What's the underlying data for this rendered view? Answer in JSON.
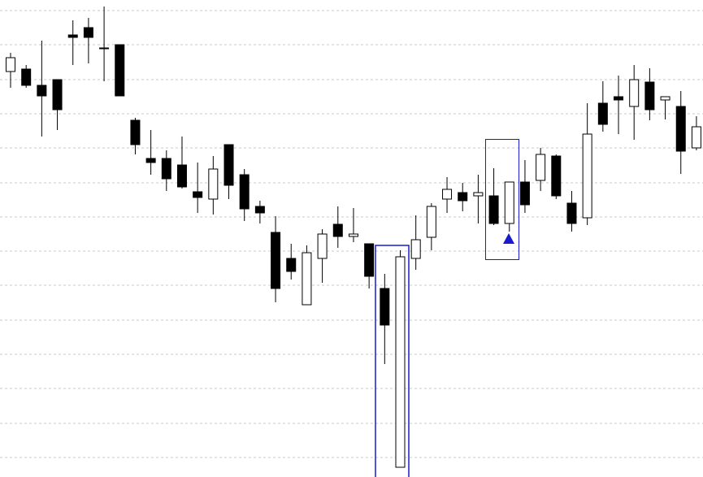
{
  "chart_data": {
    "type": "candlestick",
    "open": [
      499,
      502,
      482,
      489,
      544,
      553,
      528,
      532,
      439,
      392,
      392,
      384,
      351,
      342,
      409,
      372,
      333,
      301,
      269,
      212,
      269,
      311,
      296,
      287,
      232,
      12,
      269,
      295,
      342,
      350,
      346,
      346,
      312,
      363,
      365,
      395,
      337,
      319,
      460,
      468,
      456,
      486,
      464,
      456,
      405
    ],
    "high": [
      522,
      507,
      537,
      489,
      562,
      565,
      579,
      532,
      442,
      427,
      402,
      419,
      387,
      395,
      409,
      379,
      340,
      321,
      287,
      285,
      305,
      333,
      331,
      287,
      250,
      279,
      322,
      337,
      369,
      362,
      372,
      380,
      363,
      390,
      405,
      397,
      352,
      460,
      487,
      494,
      507,
      503,
      468,
      475,
      444
    ],
    "low": [
      479,
      479,
      419,
      427,
      507,
      509,
      487,
      469,
      397,
      372,
      352,
      355,
      325,
      323,
      342,
      315,
      312,
      215,
      243,
      212,
      239,
      282,
      289,
      232,
      139,
      12,
      255,
      279,
      325,
      327,
      312,
      310,
      302,
      325,
      352,
      342,
      302,
      310,
      425,
      422,
      415,
      439,
      440,
      373,
      402
    ],
    "close": [
      516,
      482,
      469,
      452,
      541,
      541,
      527,
      469,
      409,
      387,
      367,
      357,
      344,
      379,
      359,
      330,
      325,
      232,
      253,
      276,
      299,
      296,
      299,
      247,
      187,
      271,
      292,
      333,
      354,
      340,
      350,
      312,
      363,
      335,
      397,
      346,
      312,
      422,
      434,
      464,
      489,
      452,
      468,
      401,
      431
    ],
    "up_color": "#ffffff",
    "down_color": "#000000",
    "ylim": [
      0,
      587
    ],
    "yticks": [
      24,
      66,
      109,
      151,
      193,
      236,
      278,
      320,
      362,
      405,
      447,
      489,
      532,
      574
    ],
    "grid": true
  }
}
